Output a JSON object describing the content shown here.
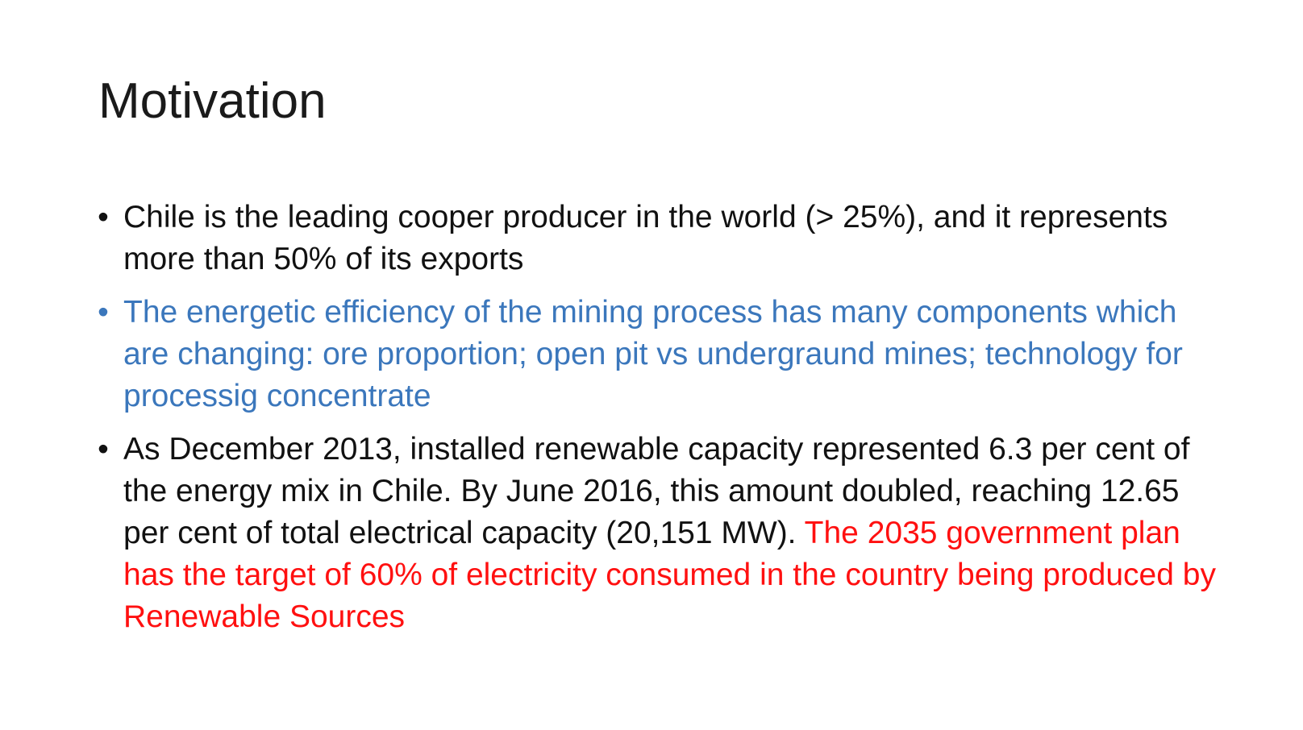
{
  "slide": {
    "title": "Motivation",
    "bullet_char": "•",
    "bullets": [
      {
        "text": "Chile is the leading cooper producer in the world (> 25%), and it represents more than 50% of its exports",
        "color": "#111111"
      },
      {
        "text": "The energetic efficiency of the mining process has many components which are changing: ore proportion; open pit vs undergraund mines; technology for processig concentrate",
        "color": "#3b77bc"
      },
      {
        "text": "As December 2013, installed renewable capacity represented 6.3 per cent of the energy mix in Chile. By June 2016, this amount doubled, reaching 12.65 per cent of total electrical capacity (20,151 MW).",
        "highlight": "The 2035 government plan has the target of 60% of electricity consumed in the country being produced by Renewable Sources",
        "color": "#111111",
        "highlight_color": "#ff1010"
      }
    ]
  }
}
